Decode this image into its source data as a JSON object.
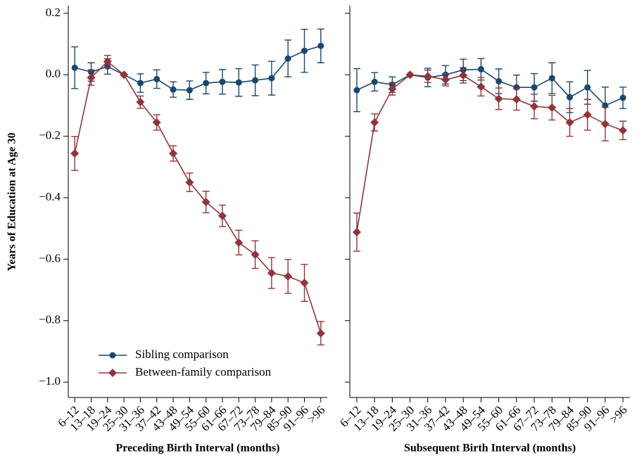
{
  "chart_data": [
    {
      "type": "line",
      "ylabel": "Years of Education at Age 30",
      "xlabel": "Preceding Birth Interval (months)",
      "categories": [
        "6–12",
        "13–18",
        "19–24",
        "25–30",
        "31–36",
        "37–42",
        "43–48",
        "49–54",
        "55–60",
        "61–66",
        "67–72",
        "73–78",
        "79–84",
        "85–90",
        "91–96",
        ">96"
      ],
      "ylim": [
        -1.05,
        0.225
      ],
      "yticks": [
        {
          "value": 0.2,
          "label": "0.2"
        },
        {
          "value": 0,
          "label": "0.0"
        },
        {
          "value": -0.2,
          "label": "−0.2"
        },
        {
          "value": -0.4,
          "label": "−0.4"
        },
        {
          "value": -0.6,
          "label": "−0.6"
        },
        {
          "value": -0.8,
          "label": "−0.8"
        },
        {
          "value": -1,
          "label": "−1.0"
        }
      ],
      "ytick_labels": true,
      "legend": "lower left",
      "series": [
        {
          "name": "Sibling comparison",
          "color": "#1a476f",
          "marker": "circle",
          "values": [
            0.023,
            0.009,
            0.027,
            0,
            -0.027,
            -0.014,
            -0.048,
            -0.05,
            -0.027,
            -0.023,
            -0.025,
            -0.018,
            -0.011,
            0.053,
            0.078,
            0.094
          ],
          "errors": [
            0.068,
            0.03,
            0.025,
            0,
            0.03,
            0.03,
            0.025,
            0.03,
            0.035,
            0.04,
            0.045,
            0.05,
            0.055,
            0.06,
            0.07,
            0.055
          ]
        },
        {
          "name": "Between-family comparison",
          "color": "#90353b",
          "marker": "diamond",
          "values": [
            -0.256,
            -0.009,
            0.043,
            0,
            -0.089,
            -0.155,
            -0.256,
            -0.35,
            -0.414,
            -0.459,
            -0.546,
            -0.585,
            -0.645,
            -0.656,
            -0.677,
            -0.841
          ],
          "errors": [
            0.055,
            0.025,
            0.02,
            0,
            0.02,
            0.025,
            0.025,
            0.03,
            0.035,
            0.035,
            0.04,
            0.045,
            0.05,
            0.055,
            0.06,
            0.038
          ]
        }
      ]
    },
    {
      "type": "line",
      "xlabel": "Subsequent Birth Interval (months)",
      "categories": [
        "6–12",
        "13–18",
        "19–24",
        "25–30",
        "31–36",
        "37–42",
        "43–48",
        "49–54",
        "55–60",
        "61–66",
        "67–72",
        "73–78",
        "79–84",
        "85–90",
        "91–96",
        ">96"
      ],
      "ylim": [
        -1.05,
        0.225
      ],
      "yticks": [
        0.2,
        0,
        -0.2,
        -0.4,
        -0.6,
        -0.8,
        -1
      ],
      "ytick_labels": false,
      "series": [
        {
          "color": "#1a476f",
          "marker": "circle",
          "values": [
            -0.05,
            -0.023,
            -0.032,
            0,
            -0.009,
            0,
            0.016,
            0.018,
            -0.021,
            -0.041,
            -0.041,
            -0.011,
            -0.073,
            -0.041,
            -0.1,
            -0.075
          ],
          "errors": [
            0.07,
            0.03,
            0.025,
            0,
            0.03,
            0.03,
            0.035,
            0.035,
            0.04,
            0.04,
            0.045,
            0.05,
            0.05,
            0.055,
            0.06,
            0.035
          ]
        },
        {
          "color": "#90353b",
          "marker": "diamond",
          "values": [
            -0.512,
            -0.155,
            -0.046,
            0,
            -0.005,
            -0.016,
            -0.002,
            -0.039,
            -0.078,
            -0.08,
            -0.103,
            -0.107,
            -0.155,
            -0.13,
            -0.16,
            -0.181
          ],
          "errors": [
            0.062,
            0.028,
            0.02,
            0,
            0.02,
            0.02,
            0.025,
            0.03,
            0.035,
            0.035,
            0.04,
            0.04,
            0.045,
            0.05,
            0.055,
            0.03
          ]
        }
      ]
    }
  ]
}
